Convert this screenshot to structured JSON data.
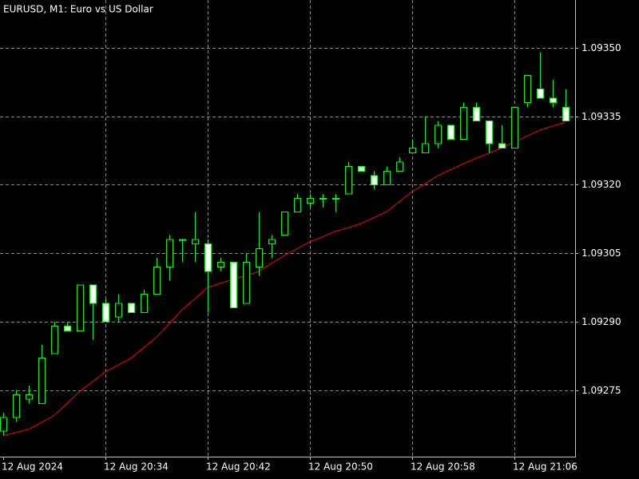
{
  "chart_data": {
    "type": "candlestick",
    "title": "EURUSD, M1:  Euro vs US Dollar",
    "categories": [
      "12 Aug 2024",
      null,
      null,
      null,
      null,
      null,
      null,
      null,
      "12 Aug 20:34",
      null,
      null,
      null,
      null,
      null,
      null,
      null,
      "12 Aug 20:42",
      null,
      null,
      null,
      null,
      null,
      null,
      null,
      "12 Aug 20:50",
      null,
      null,
      null,
      null,
      null,
      null,
      null,
      "12 Aug 20:58",
      null,
      null,
      null,
      null,
      null,
      null,
      null,
      "12 Aug 21:06",
      null,
      null,
      null,
      null
    ],
    "open": [
      1.09266,
      1.09269,
      1.09273,
      1.09272,
      1.09283,
      1.09289,
      1.09288,
      1.09298,
      1.09294,
      1.09291,
      1.09294,
      1.09292,
      1.09296,
      1.09302,
      1.09308,
      1.09307,
      1.09307,
      1.09302,
      1.09303,
      1.09294,
      1.09302,
      1.09307,
      1.09309,
      1.09314,
      1.09316,
      1.09317,
      1.09317,
      1.09318,
      1.09324,
      1.09322,
      1.0932,
      1.09323,
      1.09327,
      1.09327,
      1.09329,
      1.09333,
      1.0933,
      1.09337,
      1.09334,
      1.09329,
      1.09328,
      1.09338,
      1.09341,
      1.09339,
      1.09337
    ],
    "high": [
      1.0927,
      1.09275,
      1.09276,
      1.09285,
      1.0929,
      1.0929,
      1.09298,
      1.09298,
      1.09295,
      1.09296,
      1.09294,
      1.09297,
      1.09304,
      1.09309,
      1.09308,
      1.09314,
      1.09308,
      1.09304,
      1.09303,
      1.09305,
      1.09314,
      1.09309,
      1.09314,
      1.09318,
      1.09318,
      1.09318,
      1.09318,
      1.09325,
      1.09324,
      1.09323,
      1.09324,
      1.09326,
      1.0933,
      1.09335,
      1.09334,
      1.09333,
      1.09338,
      1.09338,
      1.09334,
      1.09333,
      1.09337,
      1.09344,
      1.09349,
      1.09343,
      1.09341
    ],
    "low": [
      1.09265,
      1.09268,
      1.09272,
      1.09272,
      1.09283,
      1.09288,
      1.09288,
      1.09286,
      1.0929,
      1.0929,
      1.09292,
      1.09292,
      1.09296,
      1.09299,
      1.09303,
      1.09303,
      1.09292,
      1.09301,
      1.09293,
      1.09294,
      1.093,
      1.09304,
      1.09309,
      1.09314,
      1.09315,
      1.09315,
      1.09314,
      1.09318,
      1.09323,
      1.09319,
      1.0932,
      1.09323,
      1.09327,
      1.09327,
      1.09328,
      1.0933,
      1.0933,
      1.09334,
      1.09327,
      1.09328,
      1.09328,
      1.09337,
      1.09339,
      1.09337,
      1.09334
    ],
    "close": [
      1.09269,
      1.09274,
      1.09274,
      1.09282,
      1.09289,
      1.09288,
      1.09298,
      1.09294,
      1.0929,
      1.09294,
      1.09292,
      1.09296,
      1.09302,
      1.09308,
      1.09308,
      1.09308,
      1.09301,
      1.09303,
      1.09293,
      1.09303,
      1.09306,
      1.09308,
      1.09314,
      1.09317,
      1.09317,
      1.09317,
      1.09317,
      1.09324,
      1.09323,
      1.0932,
      1.09323,
      1.09325,
      1.09328,
      1.09329,
      1.09333,
      1.0933,
      1.09337,
      1.09334,
      1.09329,
      1.09328,
      1.09337,
      1.09344,
      1.09339,
      1.09338,
      1.09334
    ],
    "moving_average": {
      "color": "#ff0000",
      "values": [
        1.09265,
        1.092657,
        1.092664,
        1.092679,
        1.092695,
        1.092721,
        1.092747,
        1.092769,
        1.09279,
        1.092805,
        1.09282,
        1.092843,
        1.092866,
        1.092896,
        1.092926,
        1.09295,
        1.092975,
        1.092984,
        1.092993,
        1.093001,
        1.09301,
        1.093028,
        1.093045,
        1.09306,
        1.093075,
        1.093086,
        1.093098,
        1.093106,
        1.093115,
        1.093128,
        1.093141,
        1.093163,
        1.093185,
        1.093202,
        1.09322,
        1.093233,
        1.093246,
        1.093258,
        1.093269,
        1.093281,
        1.093294,
        1.093307,
        1.09332,
        1.093329,
        1.093337
      ]
    },
    "candle_color": "#00ff00",
    "bull_fill": "#000000",
    "bear_fill": "#ffffff",
    "ylim": [
      1.092604,
      1.093605
    ],
    "yticks": [
      1.09275,
      {
        "value": 1.0929,
        "label": "1.09290"
      },
      1.09305,
      {
        "value": 1.0932,
        "label": "1.09320"
      },
      1.09335,
      {
        "value": 1.0935,
        "label": "1.09350"
      }
    ],
    "grid": true
  }
}
